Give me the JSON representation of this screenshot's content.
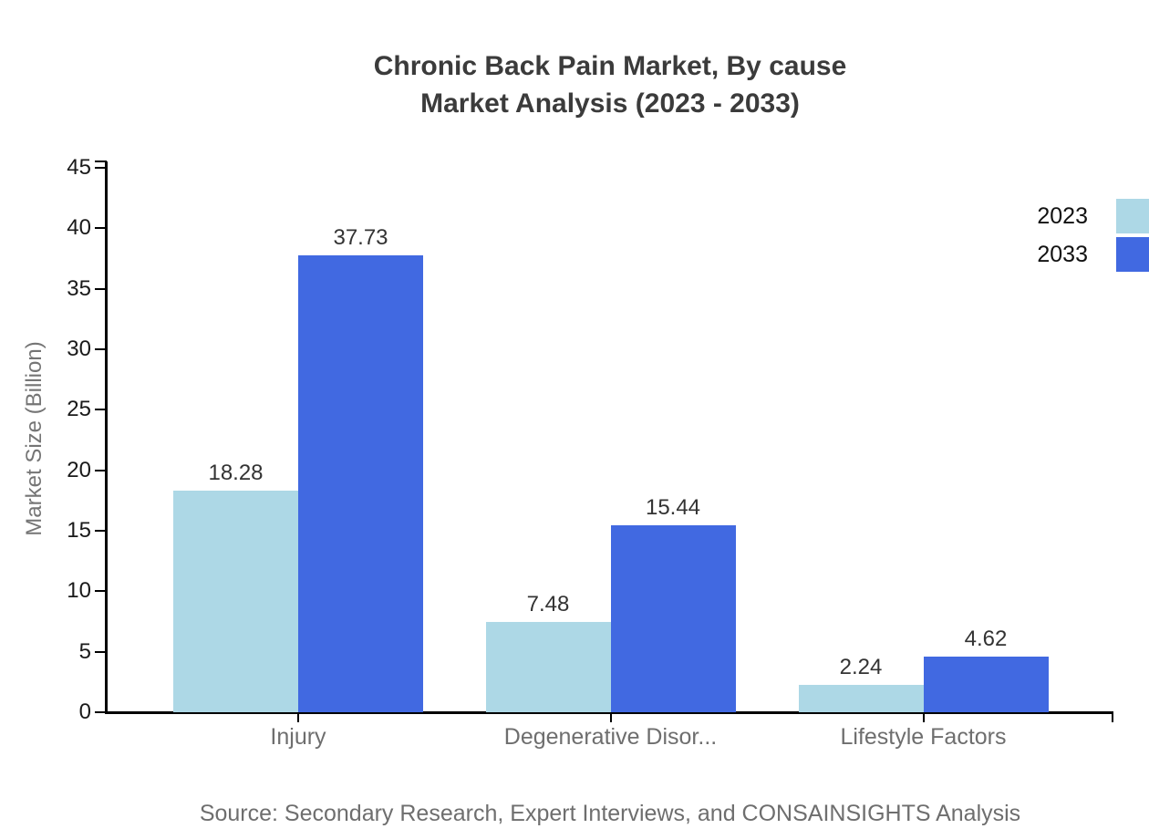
{
  "title": {
    "line1": "Chronic Back Pain Market, By cause",
    "line2": "Market Analysis (2023 - 2033)"
  },
  "source": "Source: Secondary Research, Expert Interviews, and CONSAINSIGHTS Analysis",
  "chart_data": {
    "type": "bar",
    "title": "Chronic Back Pain Market, By cause Market Analysis (2023 - 2033)",
    "categories": [
      "Injury",
      "Degenerative Disor...",
      "Lifestyle Factors"
    ],
    "series": [
      {
        "name": "2023",
        "color": "#add8e6",
        "values": [
          18.28,
          7.48,
          2.24
        ]
      },
      {
        "name": "2033",
        "color": "#4169e1",
        "values": [
          37.73,
          15.44,
          4.62
        ]
      }
    ],
    "xlabel": "",
    "ylabel": "Market Size (Billion)",
    "ylim": [
      0,
      45
    ],
    "ytick_step": 5,
    "yticks": [
      0,
      5,
      10,
      15,
      20,
      25,
      30,
      35,
      40,
      45
    ],
    "grid": false,
    "legend_position": "top-right",
    "value_labels": true
  },
  "colors": {
    "axis": "#000000",
    "title_text": "#3b3b3b",
    "tick_text": "#1a1a1a",
    "value_label_text": "#333333",
    "category_text": "#6e6e6e",
    "source_text": "#6e6e6e",
    "background": "#ffffff"
  }
}
